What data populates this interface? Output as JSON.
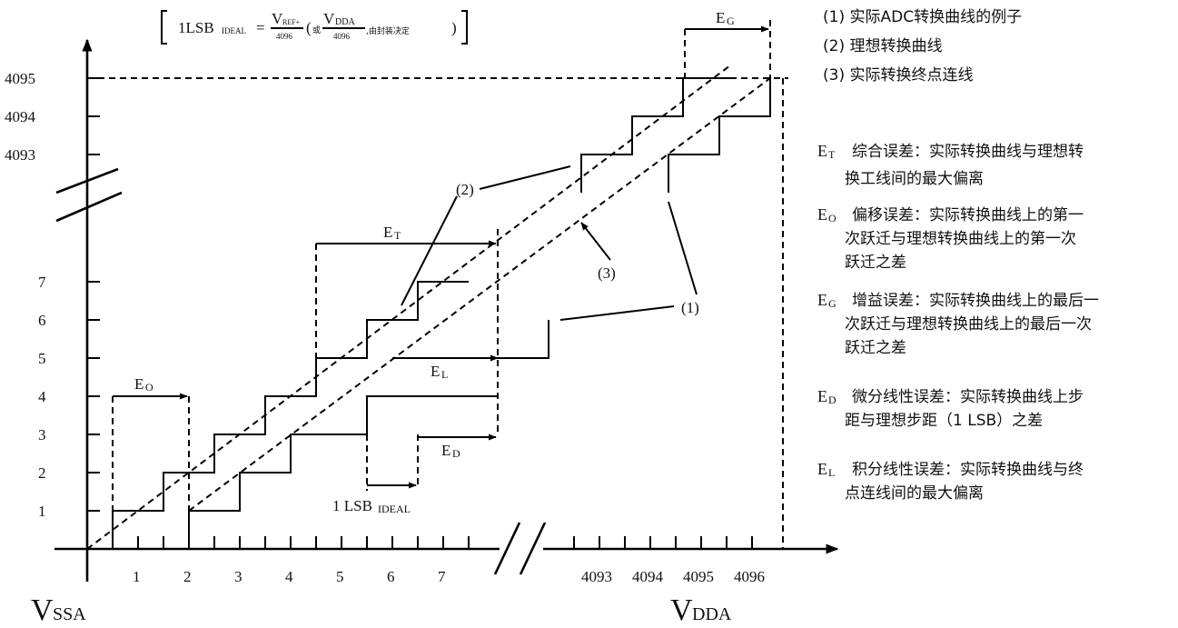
{
  "formula": {
    "lhs": "1LSB",
    "lhs_sub": "IDEAL",
    "eq": "=",
    "num1": "V",
    "num1_sub": "REF+",
    "den1": "4096",
    "paren_open": "(",
    "or": "或",
    "num2": "V",
    "num2_sub": "DDA",
    "den2": "4096",
    "note": ",由封装决定",
    "paren_close": ")"
  },
  "y_ticks": [
    "1",
    "2",
    "3",
    "4",
    "5",
    "6",
    "7",
    "4093",
    "4094",
    "4095"
  ],
  "x_ticks": [
    "1",
    "2",
    "3",
    "4",
    "5",
    "6",
    "7",
    "4093",
    "4094",
    "4095",
    "4096"
  ],
  "x_start": "V",
  "x_start_sub": "SSA",
  "x_end": "V",
  "x_end_sub": "DDA",
  "curve_labels": {
    "c1": "(1)",
    "c2": "(2)",
    "c3": "(3)"
  },
  "errors_on_chart": {
    "eo": "E",
    "eo_sub": "O",
    "et": "E",
    "et_sub": "T",
    "el": "E",
    "el_sub": "L",
    "ed": "E",
    "ed_sub": "D",
    "eg": "E",
    "eg_sub": "G",
    "lsb": "1 LSB",
    "lsb_sub": "IDEAL"
  },
  "legend": [
    "(1) 实际ADC转换曲线的例子",
    "(2) 理想转换曲线",
    "(3) 实际转换终点连线"
  ],
  "definitions": [
    {
      "sym": "E",
      "sub": "T",
      "lines": [
        "综合误差：实际转换曲线与理想转",
        "换工线间的最大偏离"
      ]
    },
    {
      "sym": "E",
      "sub": "O",
      "lines": [
        "偏移误差：实际转换曲线上的第一",
        "次跃迁与理想转换曲线上的第一次",
        "跃迁之差"
      ]
    },
    {
      "sym": "E",
      "sub": "G",
      "lines": [
        "增益误差：实际转换曲线上的最后一",
        "次跃迁与理想转换曲线上的最后一次",
        "跃迁之差"
      ]
    },
    {
      "sym": "E",
      "sub": "D",
      "lines": [
        "微分线性误差：实际转换曲线上步",
        "距与理想步距（1 LSB）之差"
      ]
    },
    {
      "sym": "E",
      "sub": "L",
      "lines": [
        "积分线性误差：实际转换曲线与终",
        "点连线间的最大偏离"
      ]
    }
  ]
}
